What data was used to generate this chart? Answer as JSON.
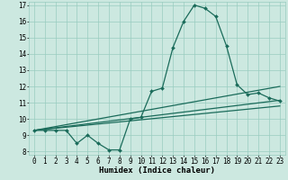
{
  "xlabel": "Humidex (Indice chaleur)",
  "xlim": [
    -0.5,
    23.5
  ],
  "ylim": [
    7.8,
    17.2
  ],
  "yticks": [
    8,
    9,
    10,
    11,
    12,
    13,
    14,
    15,
    16,
    17
  ],
  "xticks": [
    0,
    1,
    2,
    3,
    4,
    5,
    6,
    7,
    8,
    9,
    10,
    11,
    12,
    13,
    14,
    15,
    16,
    17,
    18,
    19,
    20,
    21,
    22,
    23
  ],
  "bg_color": "#cce8e0",
  "grid_color": "#99ccc0",
  "line_color": "#1a6b5a",
  "curve1_x": [
    0,
    1,
    2,
    3,
    4,
    5,
    6,
    7,
    8,
    9,
    10,
    11,
    12,
    13,
    14,
    15,
    16,
    17,
    18,
    19,
    20,
    21,
    22,
    23
  ],
  "curve1_y": [
    9.3,
    9.3,
    9.3,
    9.3,
    8.5,
    9.0,
    8.5,
    8.1,
    8.1,
    10.0,
    10.1,
    11.7,
    11.9,
    14.4,
    16.0,
    17.0,
    16.8,
    16.3,
    14.5,
    12.1,
    11.5,
    11.6,
    11.3,
    11.1
  ],
  "curve2_x": [
    0,
    23
  ],
  "curve2_y": [
    9.3,
    12.0
  ],
  "curve3_x": [
    0,
    23
  ],
  "curve3_y": [
    9.3,
    11.15
  ],
  "curve4_x": [
    0,
    23
  ],
  "curve4_y": [
    9.3,
    10.8
  ],
  "markersize": 2.0,
  "linewidth": 0.9,
  "label_fontsize": 6.5,
  "tick_fontsize": 5.5
}
